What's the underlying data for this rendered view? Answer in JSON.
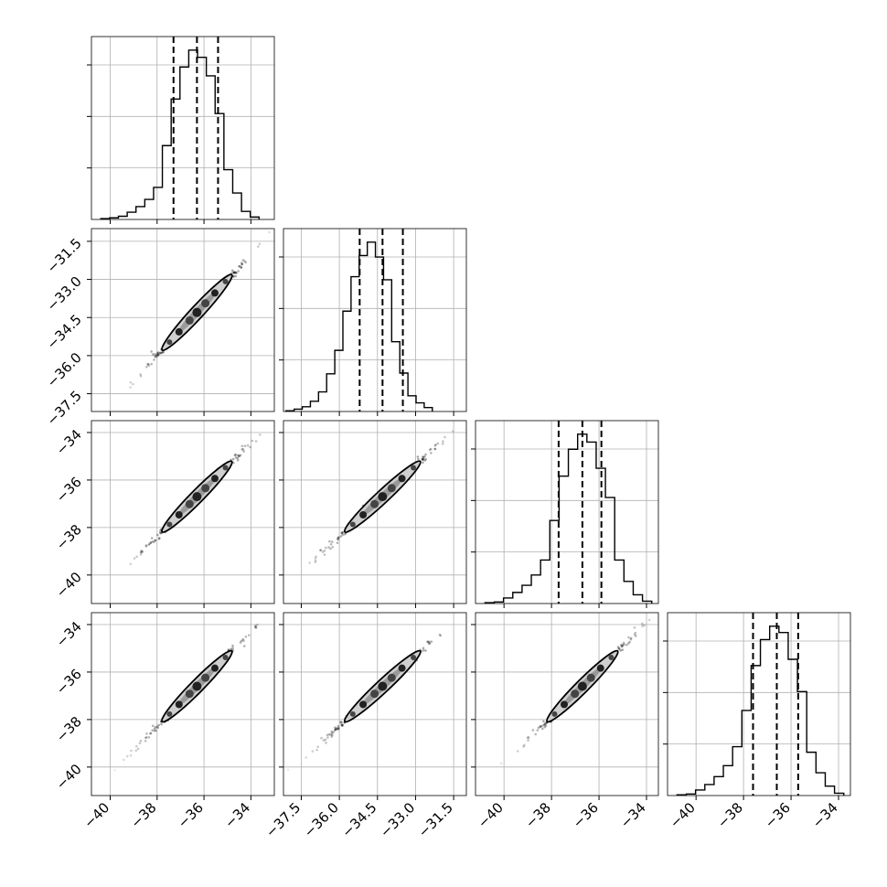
{
  "chart_data": {
    "type": "corner",
    "grid": true,
    "n_params": 4,
    "ranges": [
      [
        -40.8,
        -33.0
      ],
      [
        -38.2,
        -31.0
      ],
      [
        -41.2,
        -33.5
      ],
      [
        -41.2,
        -33.5
      ]
    ],
    "x_ticks": [
      {
        "values": [
          -40,
          -38,
          -36,
          -34
        ],
        "labels": [
          "−40",
          "−38",
          "−36",
          "−34"
        ]
      },
      {
        "values": [
          -37.5,
          -36.0,
          -34.5,
          -33.0,
          -31.5
        ],
        "labels": [
          "−37.5",
          "−36.0",
          "−34.5",
          "−33.0",
          "−31.5"
        ]
      },
      {
        "values": [
          -40,
          -38,
          -36,
          -34
        ],
        "labels": [
          "−40",
          "−38",
          "−36",
          "−34"
        ]
      },
      {
        "values": [
          -40,
          -38,
          -36,
          -34
        ],
        "labels": [
          "−40",
          "−38",
          "−36",
          "−34"
        ]
      }
    ],
    "y_ticks": [
      null,
      {
        "values": [
          -37.5,
          -36.0,
          -34.5,
          -33.0,
          -31.5
        ],
        "labels": [
          "−37.5",
          "−36.0",
          "−34.5",
          "−33.0",
          "−31.5"
        ]
      },
      {
        "values": [
          -40,
          -38,
          -36,
          -34
        ],
        "labels": [
          "−40",
          "−38",
          "−36",
          "−34"
        ]
      },
      {
        "values": [
          -40,
          -38,
          -36,
          -34
        ],
        "labels": [
          "−40",
          "−38",
          "−36",
          "−34"
        ]
      }
    ],
    "hist_yticks": 3,
    "quantiles": [
      [
        -37.3,
        -36.3,
        -35.4
      ],
      [
        -35.2,
        -34.3,
        -33.5
      ],
      [
        -37.7,
        -36.7,
        -35.9
      ],
      [
        -37.6,
        -36.6,
        -35.7
      ]
    ],
    "histograms": [
      {
        "edges_start": -40.4,
        "bin_width": 0.375,
        "counts": [
          1,
          2,
          4,
          9,
          16,
          25,
          40,
          92,
          150,
          190,
          211,
          202,
          179,
          132,
          62,
          33,
          10,
          3
        ]
      },
      {
        "edges_start": -38.1,
        "bin_width": 0.32,
        "counts": [
          1,
          3,
          6,
          13,
          25,
          48,
          78,
          128,
          172,
          199,
          216,
          197,
          168,
          89,
          49,
          20,
          11,
          5
        ]
      },
      {
        "edges_start": -40.8,
        "bin_width": 0.39,
        "counts": [
          1,
          2,
          7,
          14,
          23,
          36,
          55,
          105,
          161,
          195,
          214,
          204,
          171,
          134,
          55,
          28,
          11,
          3
        ]
      },
      {
        "edges_start": -40.8,
        "bin_width": 0.39,
        "counts": [
          1,
          2,
          7,
          14,
          24,
          38,
          62,
          108,
          165,
          198,
          215,
          207,
          173,
          132,
          55,
          29,
          12,
          3
        ]
      }
    ],
    "pairs": [
      {
        "row": 1,
        "col": 0
      },
      {
        "row": 2,
        "col": 0
      },
      {
        "row": 2,
        "col": 1
      },
      {
        "row": 3,
        "col": 0
      },
      {
        "row": 3,
        "col": 1
      },
      {
        "row": 3,
        "col": 2
      }
    ]
  }
}
